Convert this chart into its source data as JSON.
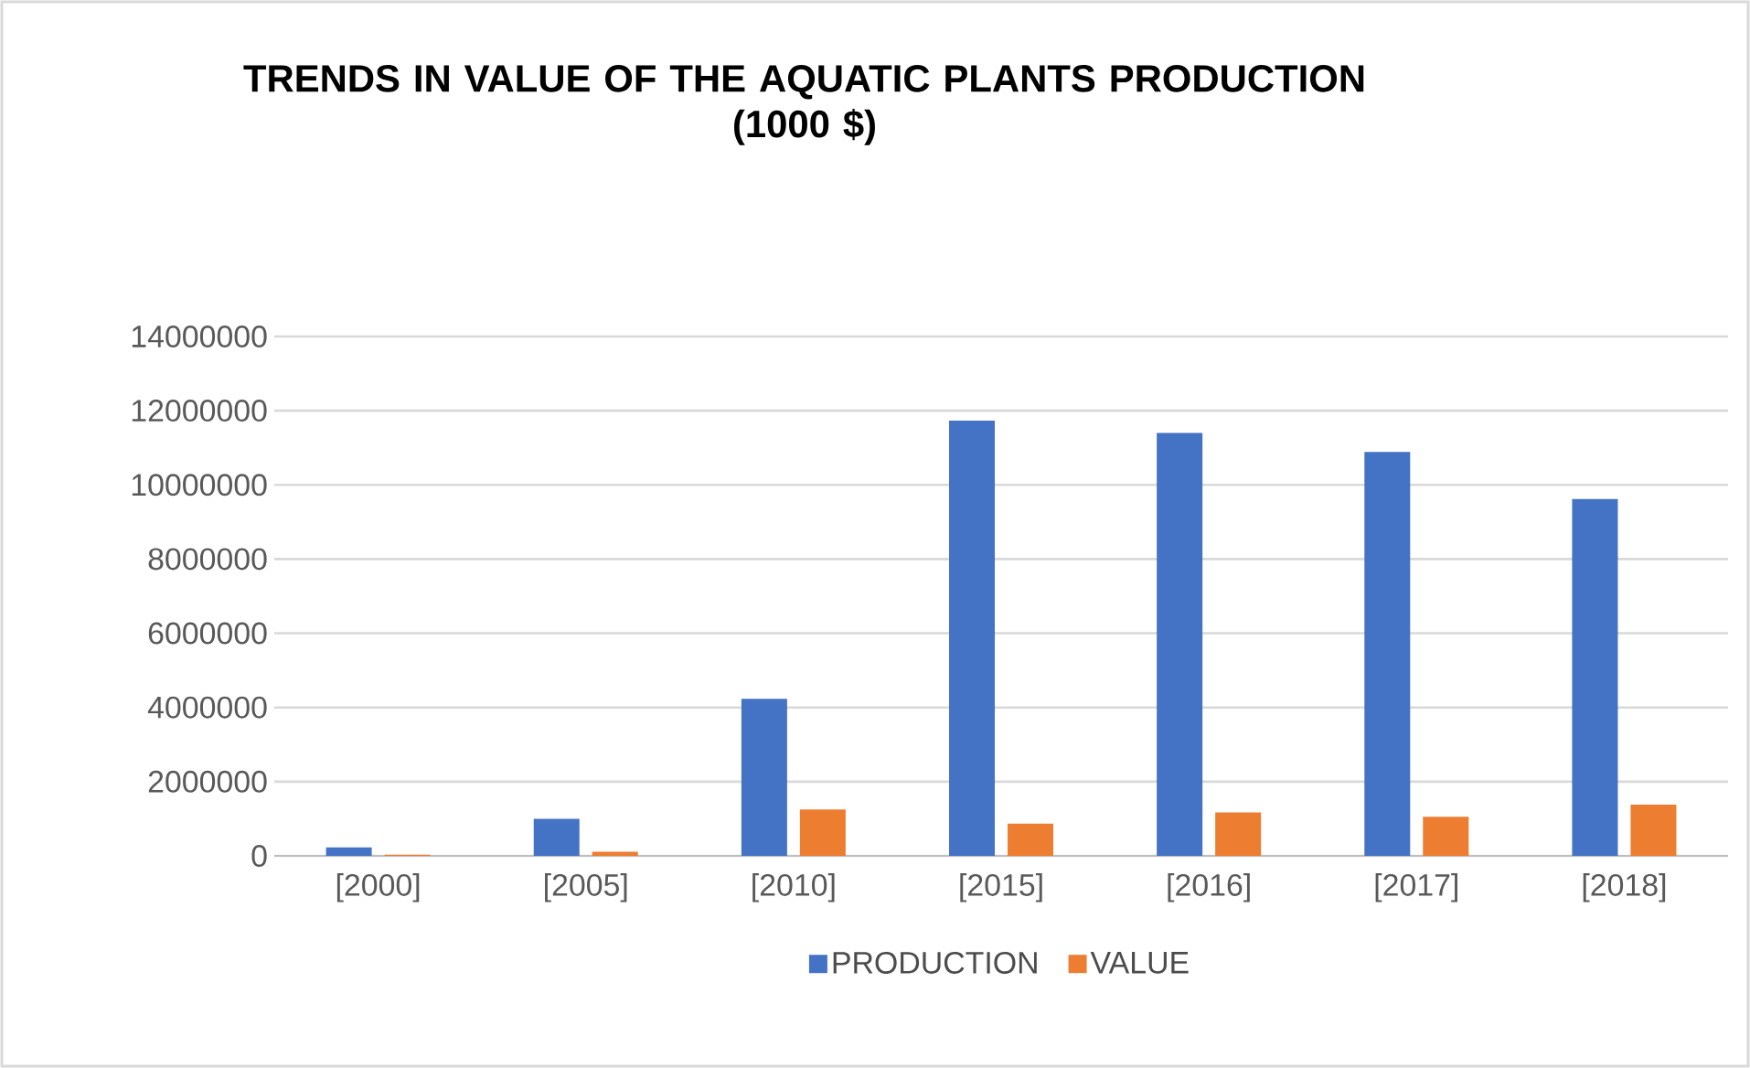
{
  "chart_data": {
    "type": "bar",
    "title": "TRENDS IN VALUE OF THE AQUATIC PLANTS PRODUCTION",
    "subtitle": "(1000 $)",
    "categories": [
      "[2000]",
      "[2005]",
      "[2010]",
      "[2015]",
      "[2016]",
      "[2017]",
      "[2018]"
    ],
    "series": [
      {
        "name": "PRODUCTION",
        "color": "#4472c4",
        "values": [
          230000,
          1000000,
          4230000,
          11730000,
          11400000,
          10890000,
          9620000
        ]
      },
      {
        "name": "VALUE",
        "color": "#ed7d31",
        "values": [
          30000,
          110000,
          1250000,
          870000,
          1170000,
          1050000,
          1380000
        ]
      }
    ],
    "ylim": [
      0,
      14000000
    ],
    "yticks": [
      0,
      2000000,
      4000000,
      6000000,
      8000000,
      10000000,
      12000000,
      14000000
    ],
    "grid": "y",
    "legend": "bottom"
  }
}
